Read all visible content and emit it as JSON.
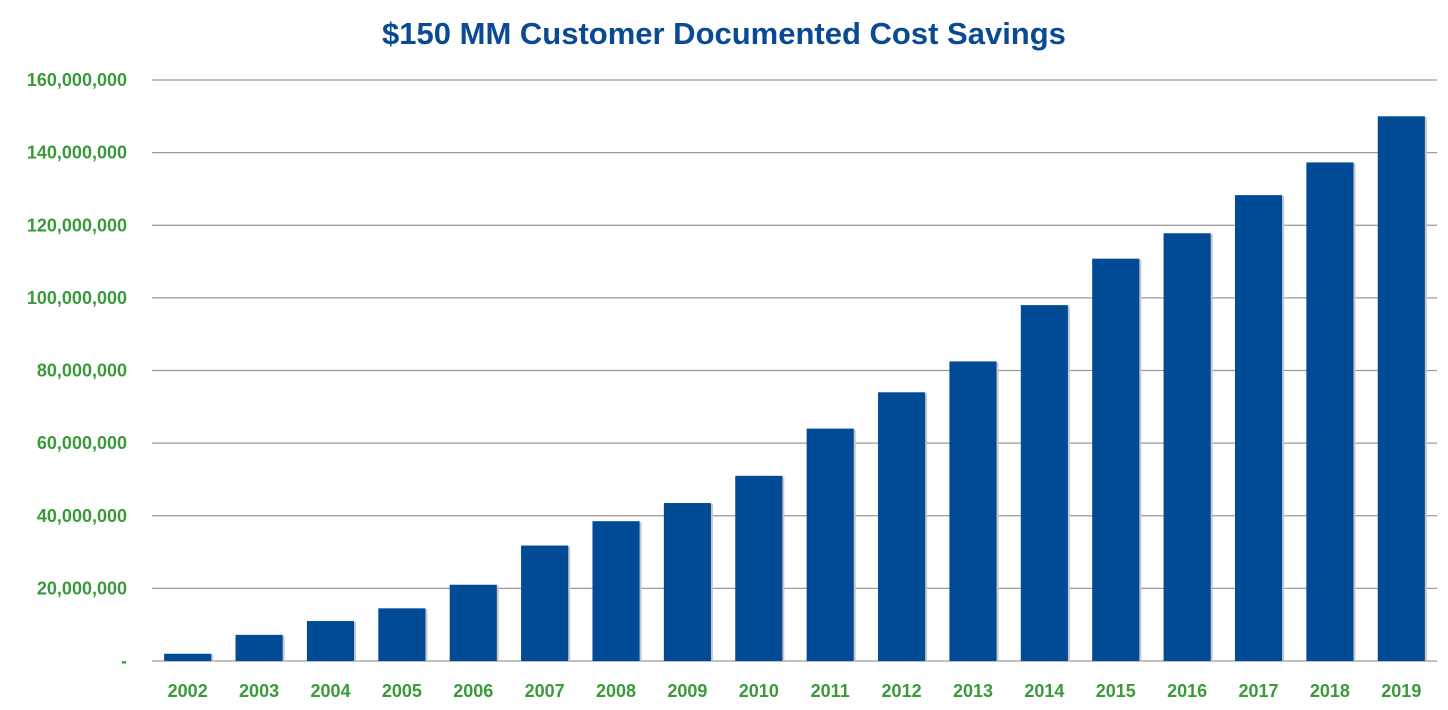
{
  "chart_data": {
    "type": "bar",
    "title": "$150 MM Customer Documented Cost Savings",
    "xlabel": "",
    "ylabel": "",
    "categories": [
      "2002",
      "2003",
      "2004",
      "2005",
      "2006",
      "2007",
      "2008",
      "2009",
      "2010",
      "2011",
      "2012",
      "2013",
      "2014",
      "2015",
      "2016",
      "2017",
      "2018",
      "2019"
    ],
    "values": [
      2000000,
      7200000,
      11000000,
      14500000,
      21000000,
      31800000,
      38500000,
      43500000,
      51000000,
      64000000,
      74000000,
      82500000,
      98000000,
      110800000,
      117800000,
      128300000,
      137300000,
      150000000
    ],
    "ylim": [
      0,
      160000000
    ],
    "yticks": [
      0,
      20000000,
      40000000,
      60000000,
      80000000,
      100000000,
      120000000,
      140000000,
      160000000
    ],
    "ytick_labels": [
      "-",
      "20,000,000",
      "40,000,000",
      "60,000,000",
      "80,000,000",
      "100,000,000",
      "120,000,000",
      "140,000,000",
      "160,000,000"
    ],
    "grid": true,
    "legend": "none",
    "colors": {
      "bar": "#004a96",
      "title": "#0a4a92",
      "tick_labels": "#3a9a3a",
      "grid": "#9a9a9a"
    }
  }
}
